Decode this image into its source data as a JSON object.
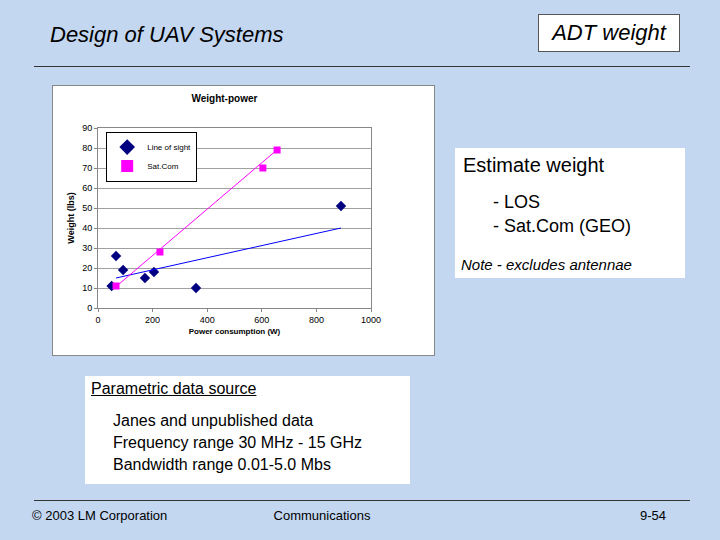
{
  "chart_data": {
    "type": "scatter",
    "title": "Weight-power",
    "x_label": "Power consumption (W)",
    "y_label": "Weight (lbs)",
    "xlim": [
      0,
      1000
    ],
    "xticks": [
      0,
      200,
      400,
      600,
      800,
      1000
    ],
    "ylim": [
      0,
      90
    ],
    "yticks": [
      0,
      10,
      20,
      30,
      40,
      50,
      60,
      70,
      80,
      90
    ],
    "grid": true,
    "legend": "upper left",
    "series": [
      {
        "name": "Line of sight",
        "color": "#000080",
        "marker": "diamond",
        "type": "scatter",
        "x": [
          50,
          66,
          92,
          172,
          205,
          359,
          890
        ],
        "values": [
          11,
          26,
          19,
          15,
          18,
          10,
          51
        ]
      },
      {
        "name": "Sat.Com",
        "color": "#ff00ff",
        "marker": "square",
        "type": "scatter",
        "x": [
          66,
          227,
          604,
          656
        ],
        "values": [
          11,
          28,
          70,
          79
        ]
      },
      {
        "color": "#0000ff",
        "type": "line",
        "x": [
          66,
          890
        ],
        "values": [
          15,
          40
        ]
      },
      {
        "color": "#ff00ff",
        "type": "line",
        "x": [
          60,
          655
        ],
        "values": [
          10,
          79
        ]
      }
    ]
  },
  "slide": {
    "title": "Design of UAV Systems",
    "tag": "ADT weight",
    "note_box": {
      "heading": "Estimate weight",
      "items": [
        "- LOS",
        "- Sat.Com (GEO)"
      ],
      "note": "Note - excludes antennae"
    },
    "source_box": {
      "heading": "Parametric data source",
      "lines": [
        "Janes and unpublished data",
        "Frequency range 30 MHz - 15 GHz",
        "Bandwidth range 0.01-5.0 Mbs"
      ]
    },
    "footer": {
      "left": "© 2003 LM Corporation",
      "center": "Communications",
      "right": "9-54"
    }
  }
}
